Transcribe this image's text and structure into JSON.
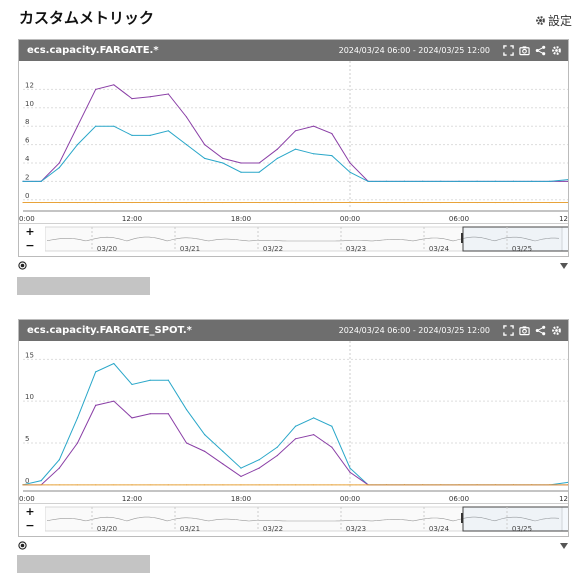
{
  "page": {
    "title": "カスタムメトリック",
    "settings_label": "設定"
  },
  "icons": {
    "settings": "gear-icon",
    "panel_tools": [
      "expand-icon",
      "camera-icon",
      "share-icon",
      "gear-icon"
    ],
    "radio": "radio-selected-icon",
    "collapse": "triangle-down-icon"
  },
  "colors": {
    "header_bg": "#6e6e6e",
    "series_purple": "#8a3fa6",
    "series_cyan": "#2aa7c9",
    "baseline_orange": "#e8a33a",
    "grid": "#dddddd"
  },
  "panels": [
    {
      "title": "ecs.capacity.FARGATE.*",
      "range": "2024/03/24 06:00 - 2024/03/25 12:00",
      "zoom_in": "+",
      "zoom_out": "−",
      "nav_labels": [
        "03/20",
        "03/21",
        "03/22",
        "03/23",
        "03/24",
        "03/25"
      ],
      "chart_data": {
        "type": "line",
        "x": [
          "06:00",
          "07:00",
          "08:00",
          "09:00",
          "10:00",
          "11:00",
          "12:00",
          "13:00",
          "14:00",
          "15:00",
          "16:00",
          "17:00",
          "18:00",
          "19:00",
          "20:00",
          "21:00",
          "22:00",
          "23:00",
          "00:00",
          "01:00",
          "02:00",
          "03:00",
          "04:00",
          "05:00",
          "06:00",
          "07:00",
          "08:00",
          "09:00",
          "10:00",
          "11:00",
          "12:00"
        ],
        "x_tick_labels": [
          "0:00",
          "12:00",
          "18:00",
          "00:00",
          "06:00",
          "12"
        ],
        "y_tick_labels": [
          "0",
          "2",
          "4",
          "6",
          "8",
          "10",
          "12"
        ],
        "ylim": [
          -1,
          14
        ],
        "grid": true,
        "series": [
          {
            "color": "#8a3fa6",
            "values": [
              2,
              2,
              4,
              8,
              12,
              12.5,
              11,
              11.2,
              11.5,
              9,
              6,
              4.5,
              4,
              4,
              5.5,
              7.5,
              8,
              7.2,
              4,
              2,
              2,
              2,
              2,
              2,
              2,
              2,
              2,
              2,
              2,
              2,
              2
            ]
          },
          {
            "color": "#2aa7c9",
            "values": [
              2,
              2,
              3.5,
              6,
              8,
              8,
              7,
              7,
              7.5,
              6,
              4.5,
              4,
              3,
              3,
              4.5,
              5.5,
              5,
              4.8,
              3,
              2,
              2,
              2,
              2,
              2,
              2,
              2,
              2,
              2,
              2,
              2,
              2.2
            ]
          },
          {
            "color": "#e8a33a",
            "values": [
              -0.3,
              -0.3,
              -0.3,
              -0.3,
              -0.3,
              -0.3,
              -0.3,
              -0.3,
              -0.3,
              -0.3,
              -0.3,
              -0.3,
              -0.3,
              -0.3,
              -0.3,
              -0.3,
              -0.3,
              -0.3,
              -0.3,
              -0.3,
              -0.3,
              -0.3,
              -0.3,
              -0.3,
              -0.3,
              -0.3,
              -0.3,
              -0.3,
              -0.3,
              -0.3,
              -0.3
            ]
          }
        ]
      }
    },
    {
      "title": "ecs.capacity.FARGATE_SPOT.*",
      "range": "2024/03/24 06:00 - 2024/03/25 12:00",
      "zoom_in": "+",
      "zoom_out": "−",
      "nav_labels": [
        "03/20",
        "03/21",
        "03/22",
        "03/23",
        "03/24",
        "03/25"
      ],
      "chart_data": {
        "type": "line",
        "x": [
          "06:00",
          "07:00",
          "08:00",
          "09:00",
          "10:00",
          "11:00",
          "12:00",
          "13:00",
          "14:00",
          "15:00",
          "16:00",
          "17:00",
          "18:00",
          "19:00",
          "20:00",
          "21:00",
          "22:00",
          "23:00",
          "00:00",
          "01:00",
          "02:00",
          "03:00",
          "04:00",
          "05:00",
          "06:00",
          "07:00",
          "08:00",
          "09:00",
          "10:00",
          "11:00",
          "12:00"
        ],
        "x_tick_labels": [
          "0:00",
          "12:00",
          "18:00",
          "00:00",
          "06:00",
          "12"
        ],
        "y_tick_labels": [
          "0",
          "5",
          "10",
          "15"
        ],
        "ylim": [
          -0.5,
          16
        ],
        "grid": true,
        "series": [
          {
            "color": "#2aa7c9",
            "values": [
              0,
              0.5,
              3,
              8,
              13.5,
              14.5,
              12,
              12.5,
              12.5,
              9,
              6,
              4,
              2,
              3,
              4.5,
              7,
              8,
              7,
              2,
              0,
              0,
              0,
              0,
              0,
              0,
              0,
              0,
              0,
              0,
              0,
              0.3
            ]
          },
          {
            "color": "#8a3fa6",
            "values": [
              0,
              0,
              2,
              5,
              9.5,
              10,
              8,
              8.5,
              8.5,
              5,
              4,
              2.5,
              1,
              2,
              3.5,
              5.5,
              6,
              4.5,
              1.5,
              0,
              0,
              0,
              0,
              0,
              0,
              0,
              0,
              0,
              0,
              0,
              0
            ]
          },
          {
            "color": "#e8a33a",
            "values": [
              0,
              0,
              0,
              0,
              0,
              0,
              0,
              0,
              0,
              0,
              0,
              0,
              0,
              0,
              0,
              0,
              0,
              0,
              0,
              0,
              0,
              0,
              0,
              0,
              0,
              0,
              0,
              0,
              0,
              0,
              0
            ]
          }
        ]
      }
    }
  ]
}
